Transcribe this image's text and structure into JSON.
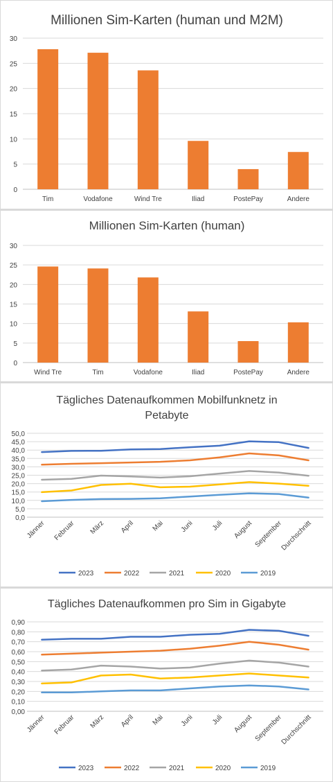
{
  "colors": {
    "bar": "#ED7D31",
    "grid": "#D9D9D9",
    "axis": "#BFBFBF",
    "text": "#404040",
    "s2023": "#4472C4",
    "s2022": "#ED7D31",
    "s2021": "#A5A5A5",
    "s2020": "#FFC000",
    "s2019": "#5B9BD5"
  },
  "chart_data": [
    {
      "type": "bar",
      "title": "Millionen Sim-Karten (human und M2M)",
      "categories": [
        "Tim",
        "Vodafone",
        "Wind Tre",
        "Iliad",
        "PostePay",
        "Andere"
      ],
      "values": [
        27.8,
        27.1,
        23.6,
        9.6,
        4.0,
        7.4
      ],
      "ylim": [
        0,
        30
      ],
      "yticks": [
        "0",
        "5",
        "10",
        "15",
        "20",
        "25",
        "30"
      ],
      "grid": true
    },
    {
      "type": "bar",
      "title": "Millionen Sim-Karten (human)",
      "categories": [
        "Wind Tre",
        "Tim",
        "Vodafone",
        "Iliad",
        "PostePay",
        "Andere"
      ],
      "values": [
        24.6,
        24.1,
        21.8,
        13.1,
        5.5,
        10.3
      ],
      "ylim": [
        0,
        30
      ],
      "yticks": [
        "0",
        "5",
        "10",
        "15",
        "20",
        "25",
        "30"
      ],
      "grid": true
    },
    {
      "type": "line",
      "title_lines": [
        "Tägliches Datenaufkommen Mobilfunknetz in",
        "Petabyte"
      ],
      "categories": [
        "Jänner",
        "Februar",
        "März",
        "April",
        "Mai",
        "Juni",
        "Juli",
        "August",
        "September",
        "Durchschnitt"
      ],
      "ylim": [
        0,
        50
      ],
      "yticks": [
        "0,0",
        "5,0",
        "10,0",
        "15,0",
        "20,0",
        "25,0",
        "30,0",
        "35,0",
        "40,0",
        "45,0",
        "50,0"
      ],
      "grid": true,
      "legend_position": "bottom",
      "series": [
        {
          "name": "2023",
          "color": "#4472C4",
          "values": [
            38.8,
            39.5,
            39.6,
            40.4,
            40.6,
            41.7,
            42.6,
            45.2,
            44.7,
            41.3
          ]
        },
        {
          "name": "2022",
          "color": "#ED7D31",
          "values": [
            31.3,
            31.8,
            32.2,
            32.6,
            33.0,
            33.9,
            35.6,
            38.0,
            36.8,
            33.9
          ]
        },
        {
          "name": "2021",
          "color": "#A5A5A5",
          "values": [
            22.3,
            22.8,
            24.8,
            24.3,
            23.6,
            24.4,
            26.0,
            27.5,
            26.6,
            24.7
          ]
        },
        {
          "name": "2020",
          "color": "#FFC000",
          "values": [
            14.9,
            15.9,
            19.2,
            19.9,
            17.8,
            18.2,
            19.5,
            20.9,
            20.0,
            18.7
          ]
        },
        {
          "name": "2019",
          "color": "#5B9BD5",
          "values": [
            9.5,
            10.3,
            10.8,
            10.9,
            11.3,
            12.3,
            13.3,
            14.2,
            13.8,
            11.7
          ]
        }
      ]
    },
    {
      "type": "line",
      "title_lines": [
        "Tägliches Datenaufkommen pro Sim in Gigabyte"
      ],
      "categories": [
        "Jänner",
        "Februar",
        "März",
        "April",
        "Mai",
        "Juni",
        "Juli",
        "August",
        "September",
        "Durchschnitt"
      ],
      "ylim": [
        0,
        0.9
      ],
      "yticks": [
        "0,00",
        "0,10",
        "0,20",
        "0,30",
        "0,40",
        "0,50",
        "0,60",
        "0,70",
        "0,80",
        "0,90"
      ],
      "grid": true,
      "legend_position": "bottom",
      "series": [
        {
          "name": "2023",
          "color": "#4472C4",
          "values": [
            0.72,
            0.73,
            0.73,
            0.75,
            0.75,
            0.77,
            0.78,
            0.82,
            0.81,
            0.76
          ]
        },
        {
          "name": "2022",
          "color": "#ED7D31",
          "values": [
            0.57,
            0.58,
            0.59,
            0.6,
            0.61,
            0.63,
            0.66,
            0.7,
            0.67,
            0.62
          ]
        },
        {
          "name": "2021",
          "color": "#A5A5A5",
          "values": [
            0.41,
            0.42,
            0.46,
            0.45,
            0.43,
            0.44,
            0.48,
            0.51,
            0.49,
            0.45
          ]
        },
        {
          "name": "2020",
          "color": "#FFC000",
          "values": [
            0.28,
            0.29,
            0.36,
            0.37,
            0.33,
            0.34,
            0.36,
            0.38,
            0.36,
            0.34
          ]
        },
        {
          "name": "2019",
          "color": "#5B9BD5",
          "values": [
            0.19,
            0.19,
            0.2,
            0.21,
            0.21,
            0.23,
            0.25,
            0.26,
            0.25,
            0.22
          ]
        }
      ]
    }
  ]
}
